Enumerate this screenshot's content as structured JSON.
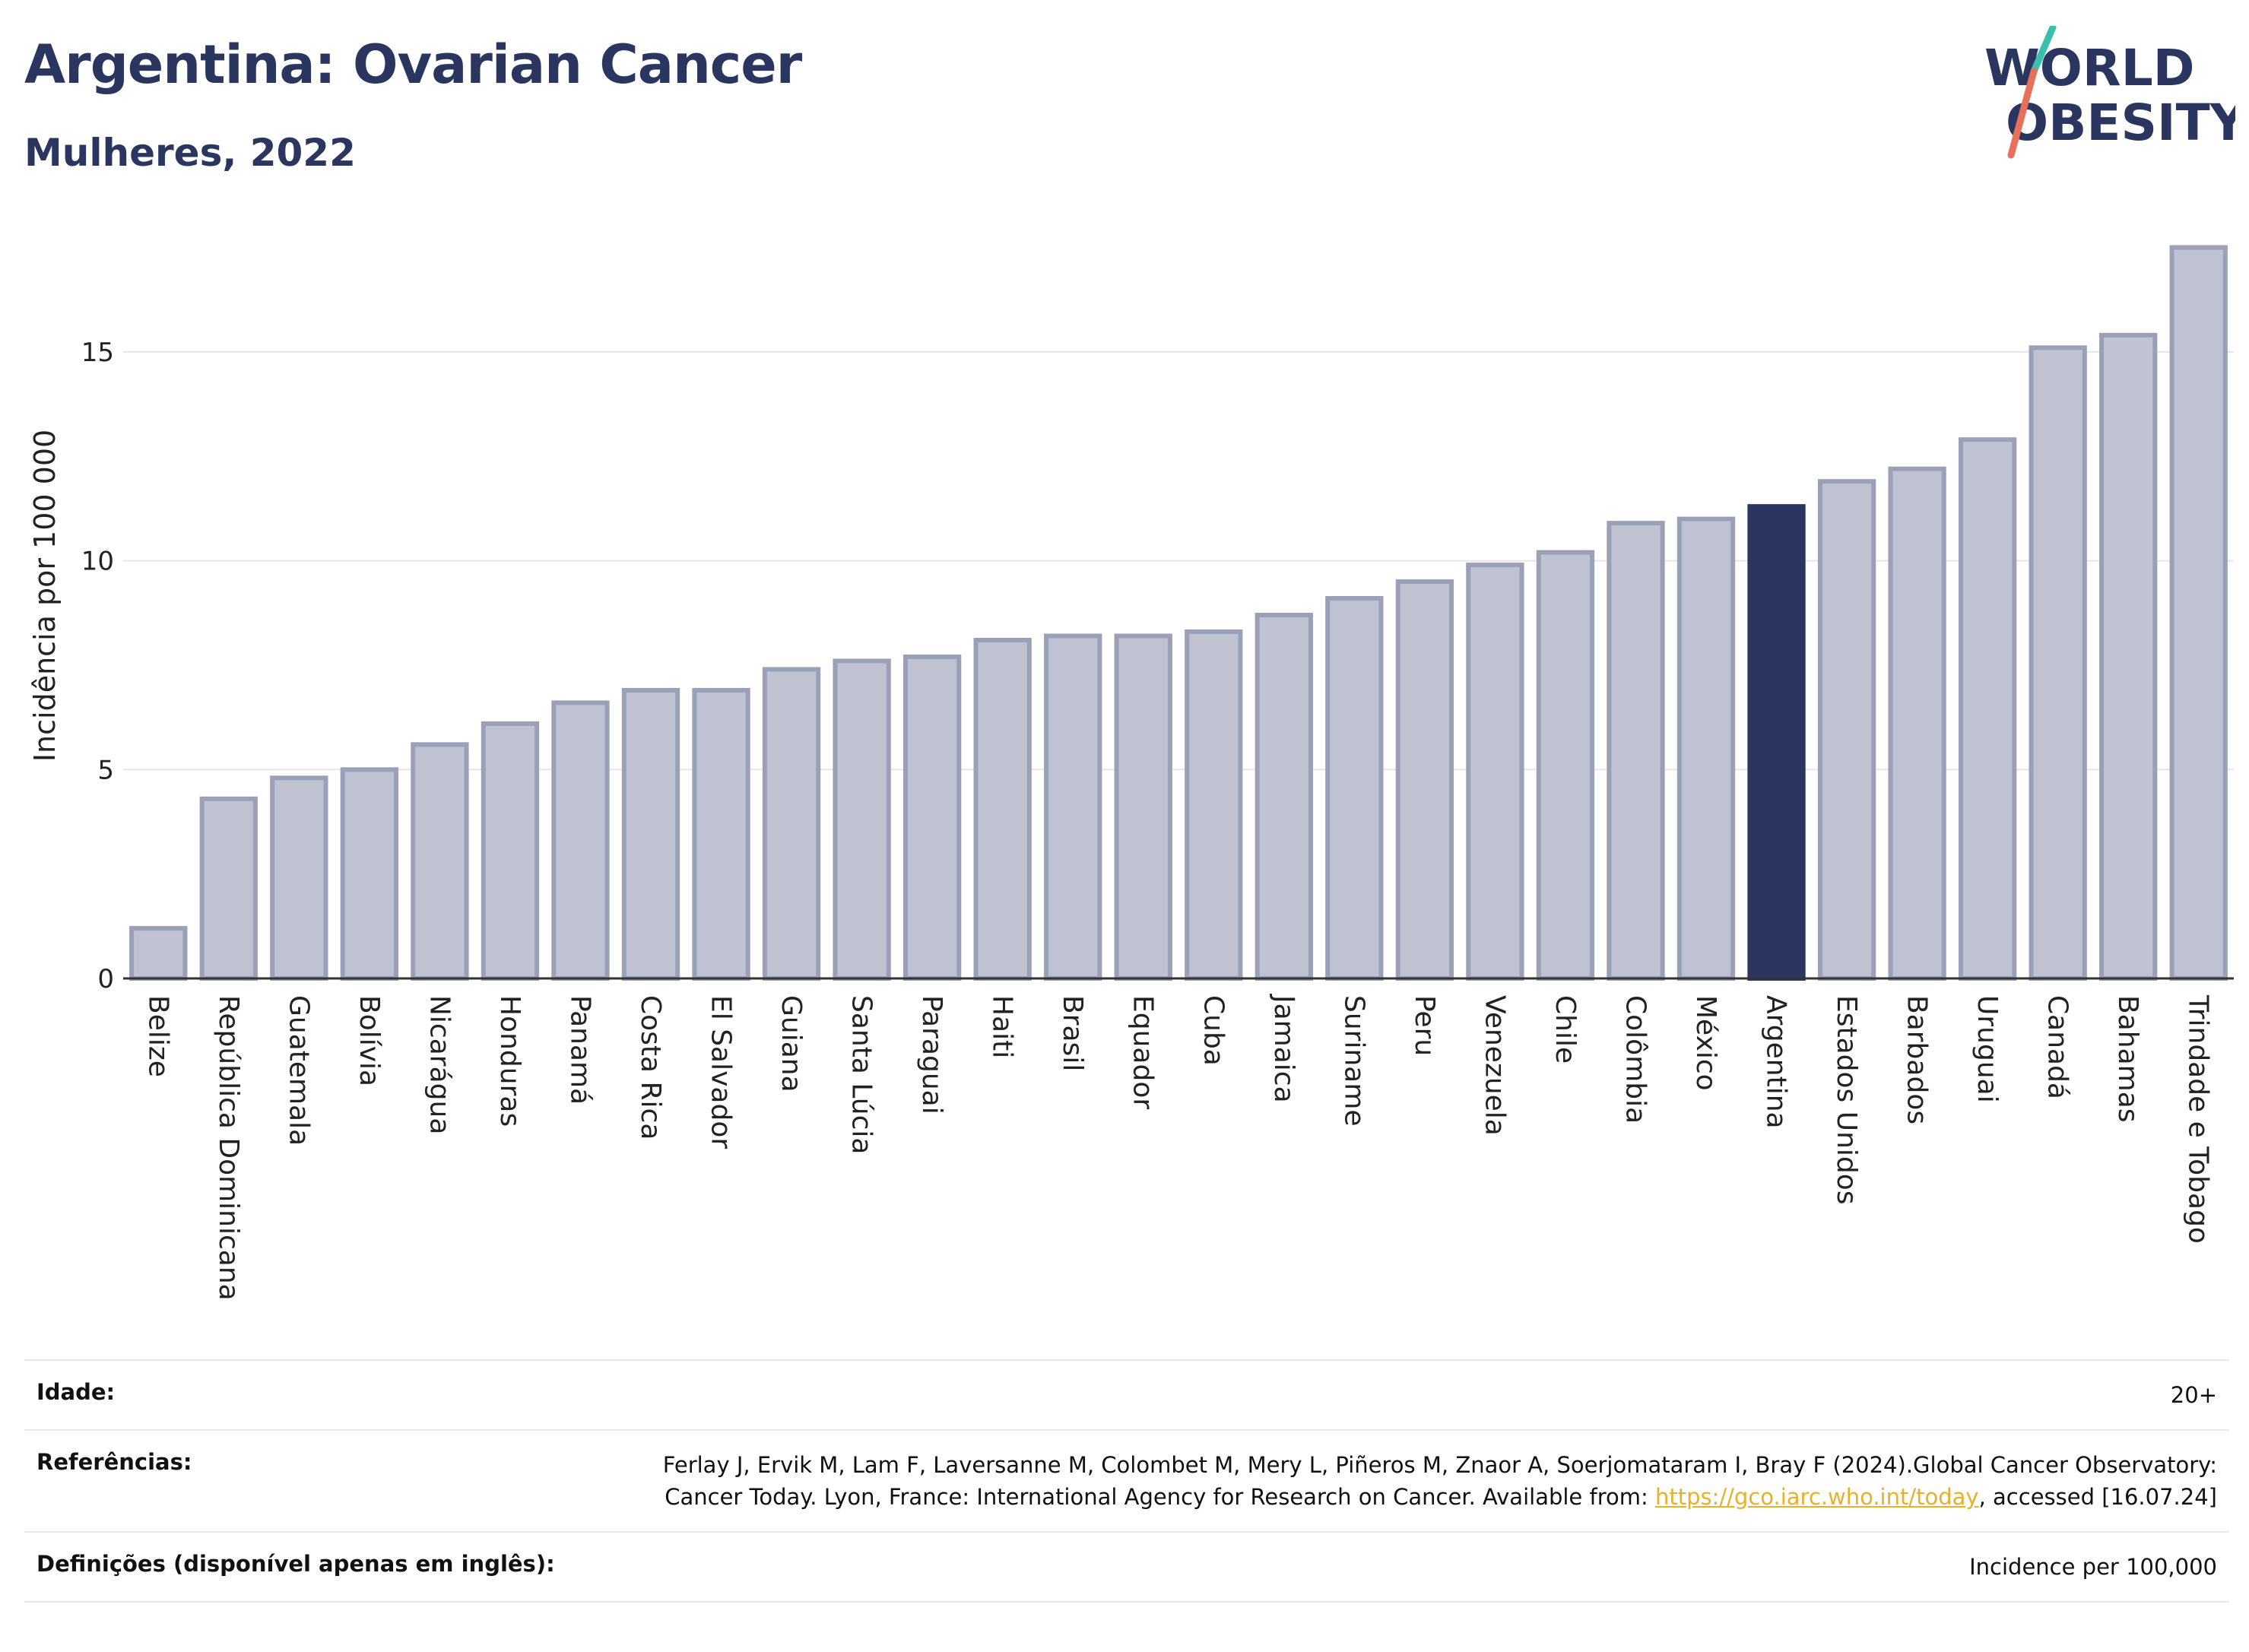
{
  "title": "Argentina: Ovarian Cancer",
  "subtitle": "Mulheres, 2022",
  "logo": {
    "line1": "WORLD",
    "line2": "OBESITY",
    "accent_colors": [
      "#3bbfad",
      "#e8705a"
    ]
  },
  "colors": {
    "bar": "#bfc3d1",
    "bar_border": "#9aa0b8",
    "highlight": "#2a3560",
    "text": "#2a3560",
    "grid": "#e6e6e6"
  },
  "chart_data": {
    "type": "bar",
    "ylabel": "Incidência por 100 000",
    "xlabel": "",
    "ylim": [
      0,
      17.6
    ],
    "yticks": [
      0,
      5,
      10,
      15
    ],
    "highlight": "Argentina",
    "categories": [
      "Belize",
      "República Dominicana",
      "Guatemala",
      "Bolívia",
      "Nicarágua",
      "Honduras",
      "Panamá",
      "Costa Rica",
      "El Salvador",
      "Guiana",
      "Santa Lúcia",
      "Paraguai",
      "Haiti",
      "Brasil",
      "Equador",
      "Cuba",
      "Jamaica",
      "Suriname",
      "Peru",
      "Venezuela",
      "Chile",
      "Colômbia",
      "México",
      "Argentina",
      "Estados Unidos",
      "Barbados",
      "Uruguai",
      "Canadá",
      "Bahamas",
      "Trindade e Tobago"
    ],
    "values": [
      1.2,
      4.3,
      4.8,
      5.0,
      5.6,
      6.1,
      6.6,
      6.9,
      6.9,
      7.4,
      7.6,
      7.7,
      8.1,
      8.2,
      8.2,
      8.3,
      8.7,
      9.1,
      9.5,
      9.9,
      10.2,
      10.9,
      11.0,
      11.3,
      11.9,
      12.2,
      12.9,
      15.1,
      15.4,
      17.5
    ]
  },
  "footer": {
    "age_label": "Idade:",
    "age_value": "20+",
    "ref_label": "Referências:",
    "ref_text_1": "Ferlay J, Ervik M, Lam F, Laversanne M, Colombet M, Mery L, Piñeros M, Znaor A, Soerjomataram I, Bray F (2024).Global Cancer Observatory: Cancer Today. Lyon, France: International Agency for Research on Cancer. Available from: ",
    "ref_link": "https://gco.iarc.who.int/today",
    "ref_text_2": ", accessed [16.07.24]",
    "def_label": "Definições (disponível apenas em inglês):",
    "def_value": "Incidence per 100,000"
  }
}
